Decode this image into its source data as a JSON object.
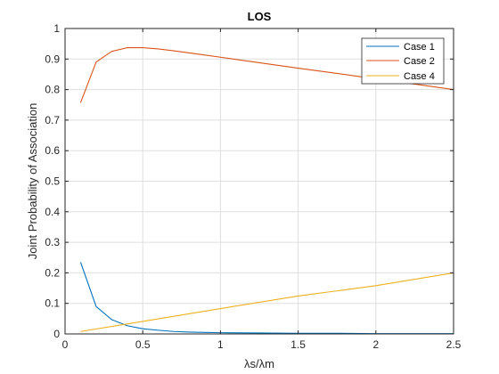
{
  "chart_data": {
    "type": "line",
    "title": "LOS",
    "xlabel": "λs/λm",
    "ylabel": "Joint Probability of Association",
    "xlim": [
      0,
      2.5
    ],
    "ylim": [
      0,
      1
    ],
    "xticks": [
      0,
      0.5,
      1,
      1.5,
      2,
      2.5
    ],
    "xtick_labels": [
      "0",
      "0.5",
      "1",
      "1.5",
      "2",
      "2.5"
    ],
    "yticks": [
      0,
      0.1,
      0.2,
      0.3,
      0.4,
      0.5,
      0.6,
      0.7,
      0.8,
      0.9,
      1
    ],
    "ytick_labels": [
      "0",
      "0.1",
      "0.2",
      "0.3",
      "0.4",
      "0.5",
      "0.6",
      "0.7",
      "0.8",
      "0.9",
      "1"
    ],
    "grid": true,
    "legend_position": "top-right",
    "series": [
      {
        "name": "Case 1",
        "color": "#0072BD",
        "x": [
          0.1,
          0.2,
          0.3,
          0.4,
          0.5,
          0.6,
          0.7,
          0.8,
          0.9,
          1.0,
          1.25,
          1.5,
          1.75,
          2.0,
          2.25,
          2.5
        ],
        "y": [
          0.235,
          0.09,
          0.047,
          0.027,
          0.017,
          0.012,
          0.008,
          0.006,
          0.005,
          0.004,
          0.003,
          0.002,
          0.002,
          0.001,
          0.001,
          0.001
        ]
      },
      {
        "name": "Case 2",
        "color": "#D95319",
        "x": [
          0.1,
          0.2,
          0.3,
          0.4,
          0.5,
          0.6,
          0.7,
          0.8,
          0.9,
          1.0,
          1.25,
          1.5,
          1.75,
          2.0,
          2.25,
          2.5
        ],
        "y": [
          0.757,
          0.89,
          0.925,
          0.937,
          0.937,
          0.933,
          0.927,
          0.92,
          0.913,
          0.906,
          0.888,
          0.87,
          0.853,
          0.835,
          0.818,
          0.8
        ]
      },
      {
        "name": "Case 4",
        "color": "#EDB120",
        "x": [
          0.1,
          0.5,
          1.0,
          1.5,
          2.0,
          2.5
        ],
        "y": [
          0.008,
          0.041,
          0.083,
          0.124,
          0.158,
          0.2
        ]
      }
    ]
  }
}
